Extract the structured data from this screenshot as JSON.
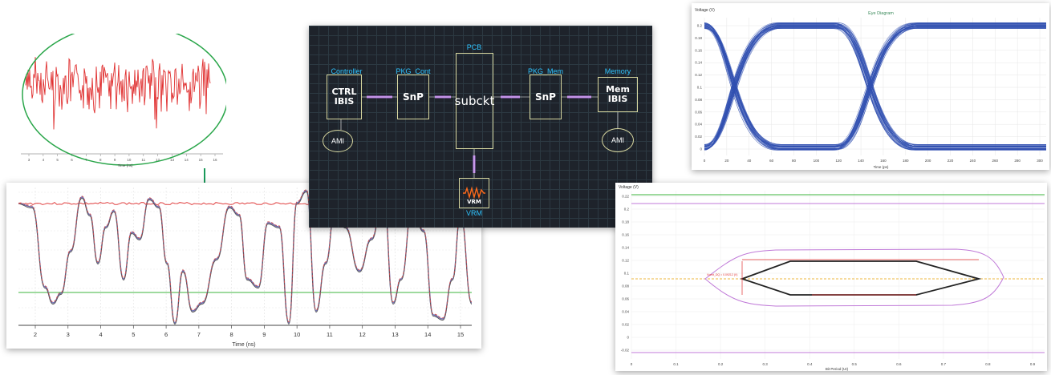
{
  "noise_plot": {
    "x_ticks": [
      "3",
      "4",
      "5",
      "6",
      "7",
      "8",
      "9",
      "10",
      "11",
      "12",
      "13",
      "14",
      "15",
      "16"
    ],
    "xlabel": "Time (ns)",
    "colors": {
      "trace": "#e03030",
      "ellipse": "#2aa64a",
      "arrow": "#1a9a5a"
    }
  },
  "waveform_plot": {
    "x_ticks": [
      "2",
      "3",
      "4",
      "5",
      "6",
      "7",
      "8",
      "9",
      "10",
      "11",
      "12",
      "13",
      "14",
      "15"
    ],
    "xlabel": "Time (ns)",
    "colors": {
      "top_trace": "#e04040",
      "threshold": "#3cb43c"
    }
  },
  "schematic": {
    "blocks": {
      "controller": {
        "title": "Controller",
        "line1": "CTRL",
        "line2": "IBIS",
        "ami": "AMI"
      },
      "pkg_cont": {
        "title": "PKG_Cont",
        "label": "SnP"
      },
      "pcb": {
        "title": "PCB",
        "label": "subckt"
      },
      "pkg_mem": {
        "title": "PKG_Mem",
        "label": "SnP"
      },
      "memory": {
        "title": "Memory",
        "line1": "Mem",
        "line2": "IBIS",
        "ami": "AMI"
      },
      "vrm": {
        "title": "VRM",
        "label": "VRM"
      }
    },
    "colors": {
      "background": "#1e232b",
      "grid": "#3a4a52",
      "title": "#2ec4ff",
      "connector": "#b070e0"
    }
  },
  "eye_diagram": {
    "title": "Eye Diagram",
    "ylabel": "Voltage (V)",
    "xlabel": "Time (ps)",
    "y_ticks": [
      "0",
      "0.02",
      "0.04",
      "0.06",
      "0.08",
      "0.1",
      "0.12",
      "0.14",
      "0.16",
      "0.18",
      "0.2"
    ],
    "x_ticks": [
      "0",
      "20",
      "40",
      "60",
      "80",
      "100",
      "120",
      "140",
      "160",
      "180",
      "200",
      "220",
      "240",
      "260",
      "280",
      "300"
    ],
    "colors": {
      "trace": "#2f4fb0"
    }
  },
  "eye_mask": {
    "ylabel": "Voltage (V)",
    "xlabel": "Bit Period (UI)",
    "y_ticks": [
      "-0.02",
      "0",
      "0.02",
      "0.04",
      "0.06",
      "0.08",
      "0.1",
      "0.12",
      "0.14",
      "0.16",
      "0.18",
      "0.2",
      "0.22"
    ],
    "x_ticks": [
      "0",
      "0.1",
      "0.2",
      "0.3",
      "0.4",
      "0.5",
      "0.6",
      "0.7",
      "0.8",
      "0.9"
    ],
    "annotation": "Vcent_DQ = 0.09212 (V)",
    "colors": {
      "contour": "#c07ad8",
      "mask": "#222222",
      "measure": "#e03030",
      "vcent": "#e8a000"
    }
  }
}
